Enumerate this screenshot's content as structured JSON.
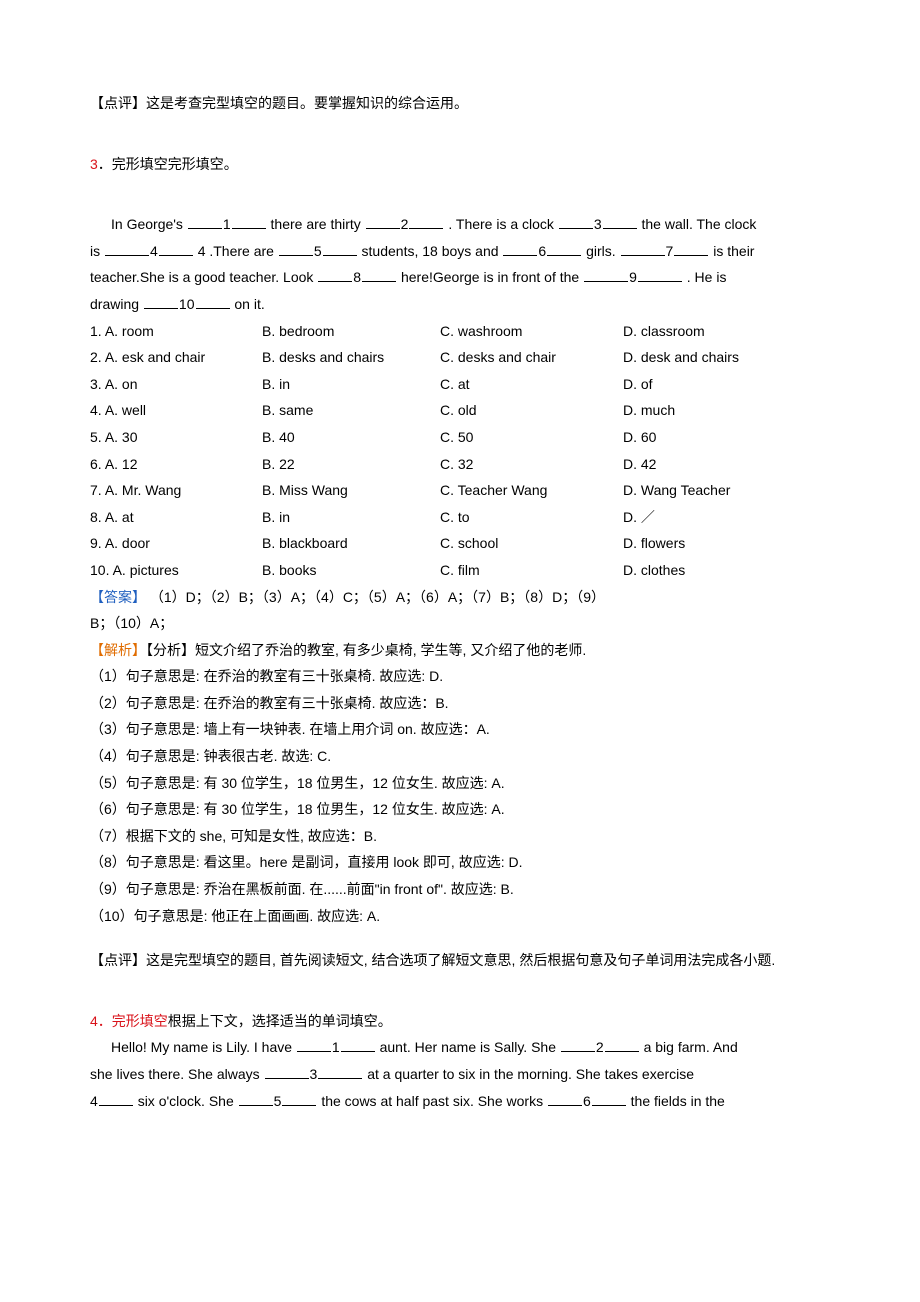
{
  "colors": {
    "blue": "#1f5fbf",
    "orange": "#e06c00",
    "red": "#d9121a",
    "text": "#000000",
    "bg": "#ffffff"
  },
  "section_top_review": "【点评】这是考查完型填空的题目。要掌握知识的综合运用。",
  "q3": {
    "prefix": "3",
    "title": "．完形填空完形填空。",
    "passage_parts": {
      "s1a": "In George's ",
      "s1b": " there are thirty ",
      "s1c": " . There is a clock ",
      "s1d": " the wall. The clock",
      "s2a": "is  ",
      "s2b": " 4 .There are ",
      "s2c": " students, 18 boys and ",
      "s2d": " girls. ",
      "s2e": " is their",
      "s3a": "teacher.She is a good teacher. Look ",
      "s3b": " here!George is in front of the ",
      "s3c": " . He is",
      "s4a": "drawing ",
      "s4b": " on it."
    },
    "blank_nums": [
      "1",
      "2",
      "3",
      "4",
      "5",
      "6",
      "7",
      "8",
      "9",
      "10"
    ],
    "options": [
      {
        "n": "1",
        "a": "A. room",
        "b": "B. bedroom",
        "c": "C. washroom",
        "d": "D. classroom"
      },
      {
        "n": "2",
        "a": "A. esk and chair",
        "b": "B. desks and chairs",
        "c": "C. desks and chair",
        "d": "D. desk and chairs"
      },
      {
        "n": "3",
        "a": "A. on",
        "b": "B. in",
        "c": "C. at",
        "d": "D. of"
      },
      {
        "n": "4",
        "a": "A. well",
        "b": "B. same",
        "c": "C. old",
        "d": "D. much"
      },
      {
        "n": "5",
        "a": "A. 30",
        "b": "B. 40",
        "c": "C. 50",
        "d": "D. 60"
      },
      {
        "n": "6",
        "a": "A. 12",
        "b": "B. 22",
        "c": "C. 32",
        "d": "D. 42"
      },
      {
        "n": "7",
        "a": "A. Mr. Wang",
        "b": "B. Miss Wang",
        "c": "C. Teacher Wang",
        "d": "D. Wang Teacher"
      },
      {
        "n": "8",
        "a": "A. at",
        "b": "B. in",
        "c": "C. to",
        "d": "D. ／"
      },
      {
        "n": "9",
        "a": "A. door",
        "b": "B. blackboard",
        "c": "C. school",
        "d": "D. flowers"
      },
      {
        "n": "10",
        "a": "A. pictures",
        "b": "B. books",
        "c": "C. film",
        "d": "D. clothes"
      }
    ],
    "answer_label": "【答案】",
    "answer_body_l1": " （1）D；（2）B；（3）A；（4）C；（5）A；（6）A；（7）B；（8）D；（9）",
    "answer_body_l2": "B；（10）A；",
    "analysis_label": "【解析】",
    "analysis_intro": "【分析】短文介绍了乔治的教室, 有多少桌椅, 学生等, 又介绍了他的老师.",
    "analysis_items": [
      "（1）句子意思是: 在乔治的教室有三十张桌椅. 故应选: D.",
      "（2）句子意思是: 在乔治的教室有三十张桌椅. 故应选：B.",
      "（3）句子意思是: 墙上有一块钟表. 在墙上用介词 on. 故应选：A.",
      "（4）句子意思是: 钟表很古老. 故选: C.",
      "（5）句子意思是: 有 30 位学生，18 位男生，12 位女生. 故应选: A.",
      "（6）句子意思是: 有 30 位学生，18 位男生，12 位女生. 故应选: A.",
      "（7）根据下文的 she, 可知是女性, 故应选：B.",
      "（8）句子意思是: 看这里。here 是副词，直接用 look 即可, 故应选: D.",
      "（9）句子意思是: 乔治在黑板前面. 在......前面\"in front of\". 故应选: B.",
      "（10）句子意思是: 他正在上面画画. 故应选: A."
    ],
    "review": "【点评】这是完型填空的题目, 首先阅读短文, 结合选项了解短文意思, 然后根据句意及句子单词用法完成各小题."
  },
  "q4": {
    "prefix": "4",
    "title_red": "．完形填空",
    "title_black": "根据上下文，选择适当的单词填空。",
    "passage_parts": {
      "s1a": "Hello! My name is Lily. I have ",
      "s1b": " aunt. Her name is Sally. She ",
      "s1c": " a big farm. And",
      "s2a": "she lives there. She always ",
      "s2b": " at a quarter to six in the morning. She takes exercise",
      "s3b": " six o'clock. She ",
      "s3c": " the cows at half past six. She works ",
      "s3d": " the fields in the"
    },
    "blank_nums": [
      "1",
      "2",
      "3",
      "4",
      "5",
      "6"
    ]
  }
}
